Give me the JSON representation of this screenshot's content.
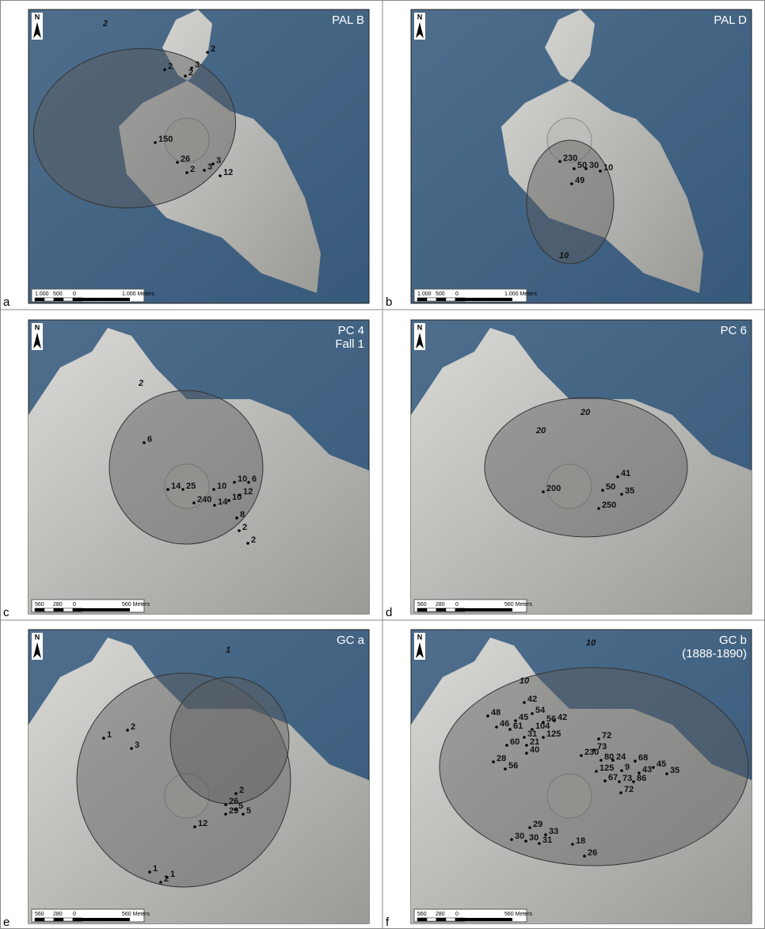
{
  "panels": [
    {
      "letter": "a",
      "title": [
        "PAL B"
      ],
      "north": "N",
      "scale": [
        "1.000",
        "500",
        "0",
        "1.000 Meters"
      ],
      "labels": [
        "2",
        "2",
        "2",
        "3",
        "2",
        "150",
        "26",
        "2",
        "3",
        "3",
        "12"
      ]
    },
    {
      "letter": "b",
      "title": [
        "PAL D"
      ],
      "north": "N",
      "scale": [
        "1.000",
        "500",
        "0",
        "1.000 Meters"
      ],
      "labels": [
        "230",
        "50",
        "30",
        "10",
        "49",
        "10"
      ]
    },
    {
      "letter": "c",
      "title": [
        "PC 4",
        "Fall 1"
      ],
      "north": "N",
      "scale": [
        "560",
        "280",
        "0",
        "560 Meters"
      ],
      "labels": [
        "2",
        "6",
        "14",
        "25",
        "240",
        "10",
        "10",
        "6",
        "12",
        "10",
        "14",
        "8",
        "2",
        "2"
      ]
    },
    {
      "letter": "d",
      "title": [
        "PC 6"
      ],
      "north": "N",
      "scale": [
        "560",
        "280",
        "0",
        "560 Meters"
      ],
      "labels": [
        "20",
        "20",
        "41",
        "35",
        "50",
        "200",
        "250"
      ]
    },
    {
      "letter": "e",
      "title": [
        "GC a"
      ],
      "north": "N",
      "scale": [
        "560",
        "280",
        "0",
        "560 Meters"
      ],
      "labels": [
        "1",
        "2",
        "1",
        "3",
        "2",
        "26",
        "5",
        "29",
        "5",
        "12",
        "1",
        "1",
        "2"
      ]
    },
    {
      "letter": "f",
      "title": [
        "GC b",
        "(1888-1890)"
      ],
      "north": "N",
      "scale": [
        "560",
        "280",
        "0",
        "560 Meters"
      ],
      "labels": [
        "10",
        "10",
        "42",
        "54",
        "48",
        "45",
        "56",
        "42",
        "46",
        "61",
        "104",
        "31",
        "125",
        "60",
        "21",
        "40",
        "72",
        "73",
        "230",
        "80",
        "24",
        "68",
        "125",
        "9",
        "43",
        "45",
        "35",
        "86",
        "67",
        "73",
        "72",
        "28",
        "56",
        "29",
        "33",
        "30",
        "30",
        "31",
        "18",
        "26"
      ]
    }
  ]
}
